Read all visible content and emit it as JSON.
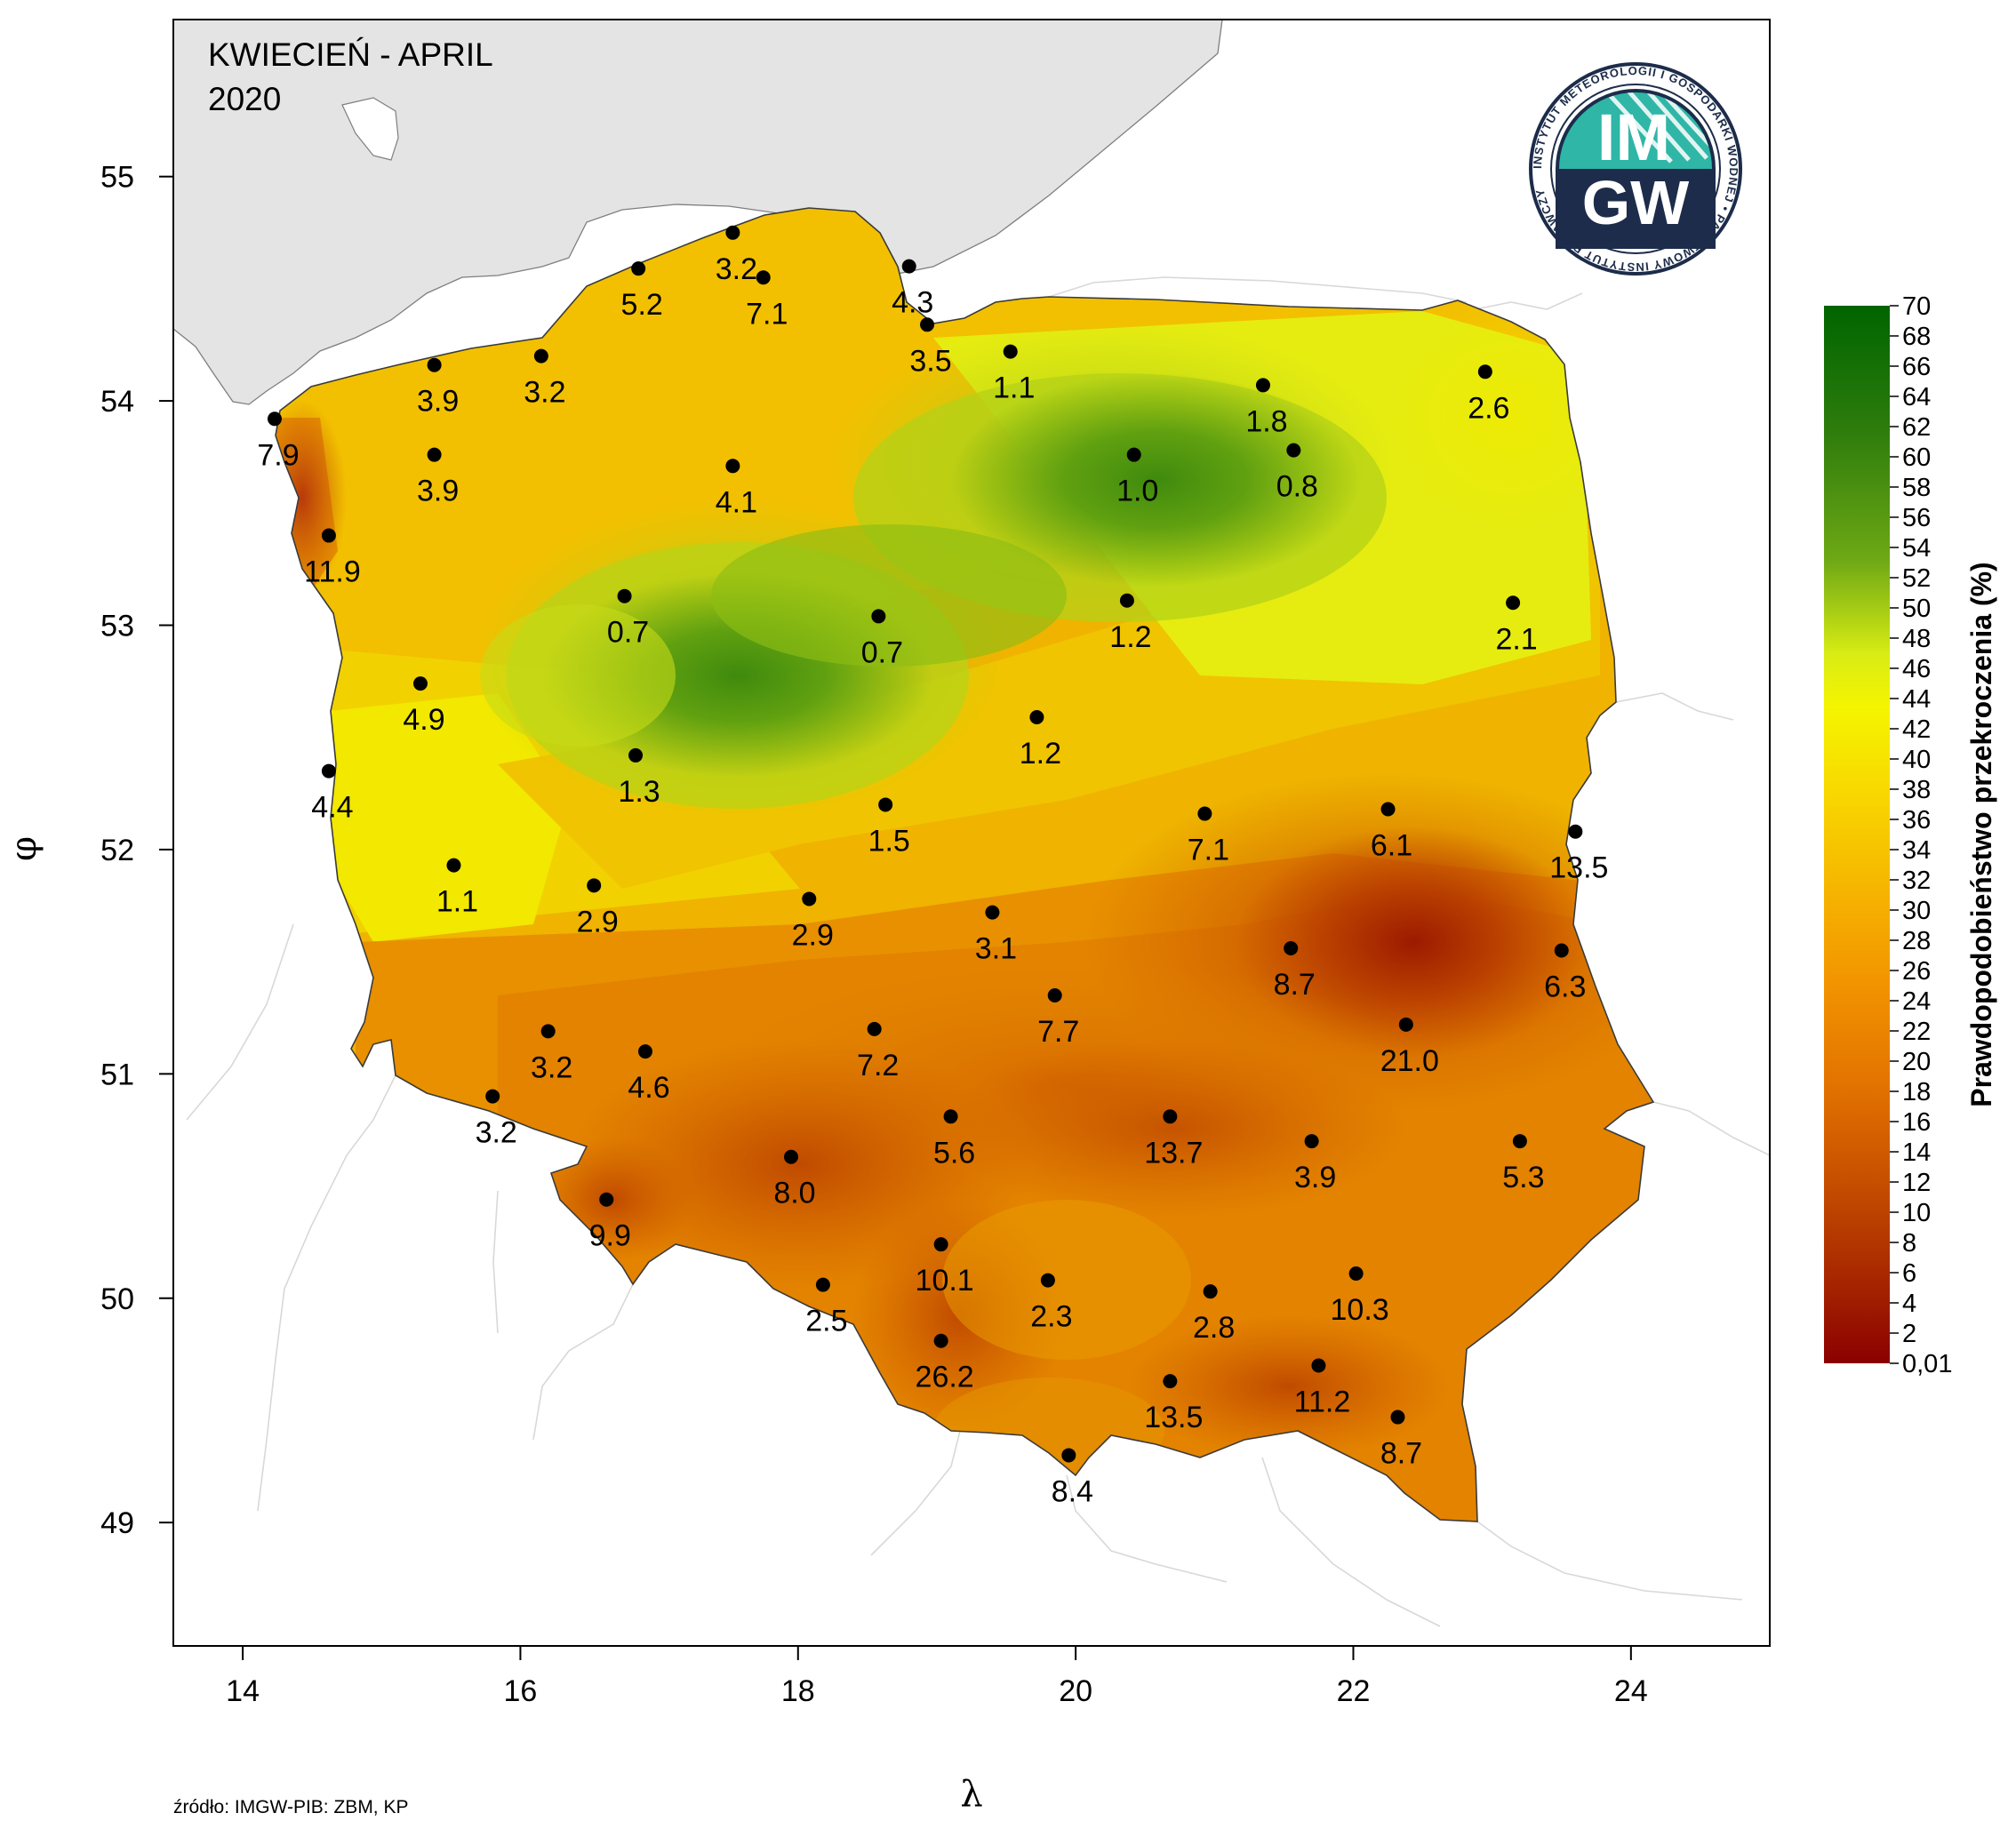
{
  "title": {
    "line1": "KWIECIEŃ - APRIL",
    "line2": "2020"
  },
  "axes": {
    "x_label": "λ",
    "y_label": "φ",
    "x_ticks": [
      "14",
      "16",
      "18",
      "20",
      "22",
      "24"
    ],
    "y_ticks": [
      "55",
      "54",
      "53",
      "52",
      "51",
      "50",
      "49"
    ],
    "x_tick_values": [
      14,
      16,
      18,
      20,
      22,
      24
    ],
    "y_tick_values": [
      55,
      54,
      53,
      52,
      51,
      50,
      49
    ],
    "lon_range": [
      13.5,
      25.0
    ],
    "lat_range": [
      48.45,
      55.7
    ]
  },
  "source_note": "źródło: IMGW-PIB: ZBM, KP",
  "logo": {
    "letters_top": "IM",
    "letters_bottom": "GW",
    "ring_text": "INSTYTUT METEOROLOGII I GOSPODARKI WODNEJ • PAŃSTWOWY INSTYTUT BADAWCZY"
  },
  "legend": {
    "title": "Prawdopodobieństwo przekroczenia (%)",
    "labels": [
      "70",
      "68",
      "66",
      "64",
      "62",
      "60",
      "58",
      "56",
      "54",
      "52",
      "50",
      "48",
      "46",
      "44",
      "42",
      "40",
      "38",
      "36",
      "34",
      "32",
      "30",
      "28",
      "26",
      "24",
      "22",
      "20",
      "18",
      "16",
      "14",
      "12",
      "10",
      "8",
      "6",
      "4",
      "2",
      "0,01"
    ]
  },
  "colors": {
    "sea": "#e4e4e4",
    "ramp_top": "#006400",
    "ramp_mid": "#f5f500",
    "ramp_low": "#f4a300",
    "ramp_bottom": "#8b0000"
  },
  "stations": [
    {
      "lon": 14.23,
      "lat": 53.92,
      "value": "7.9"
    },
    {
      "lon": 15.38,
      "lat": 54.16,
      "value": "3.9"
    },
    {
      "lon": 16.15,
      "lat": 54.2,
      "value": "3.2"
    },
    {
      "lon": 16.85,
      "lat": 54.59,
      "value": "5.2"
    },
    {
      "lon": 17.53,
      "lat": 54.75,
      "value": "3.2"
    },
    {
      "lon": 17.75,
      "lat": 54.55,
      "value": "7.1"
    },
    {
      "lon": 18.8,
      "lat": 54.6,
      "value": "4.3"
    },
    {
      "lon": 18.93,
      "lat": 54.34,
      "value": "3.5"
    },
    {
      "lon": 19.53,
      "lat": 54.22,
      "value": "1.1"
    },
    {
      "lon": 21.35,
      "lat": 54.07,
      "value": "1.8"
    },
    {
      "lon": 22.95,
      "lat": 54.13,
      "value": "2.6"
    },
    {
      "lon": 15.38,
      "lat": 53.76,
      "value": "3.9"
    },
    {
      "lon": 17.53,
      "lat": 53.71,
      "value": "4.1"
    },
    {
      "lon": 20.42,
      "lat": 53.76,
      "value": "1.0"
    },
    {
      "lon": 21.57,
      "lat": 53.78,
      "value": "0.8"
    },
    {
      "lon": 14.62,
      "lat": 53.4,
      "value": "11.9"
    },
    {
      "lon": 16.75,
      "lat": 53.13,
      "value": "0.7"
    },
    {
      "lon": 18.58,
      "lat": 53.04,
      "value": "0.7"
    },
    {
      "lon": 20.37,
      "lat": 53.11,
      "value": "1.2"
    },
    {
      "lon": 23.15,
      "lat": 53.1,
      "value": "2.1"
    },
    {
      "lon": 15.28,
      "lat": 52.74,
      "value": "4.9"
    },
    {
      "lon": 19.72,
      "lat": 52.59,
      "value": "1.2"
    },
    {
      "lon": 14.62,
      "lat": 52.35,
      "value": "4.4"
    },
    {
      "lon": 16.83,
      "lat": 52.42,
      "value": "1.3"
    },
    {
      "lon": 18.63,
      "lat": 52.2,
      "value": "1.5"
    },
    {
      "lon": 20.93,
      "lat": 52.16,
      "value": "7.1"
    },
    {
      "lon": 22.25,
      "lat": 52.18,
      "value": "6.1"
    },
    {
      "lon": 23.6,
      "lat": 52.08,
      "value": "13.5"
    },
    {
      "lon": 15.52,
      "lat": 51.93,
      "value": "1.1"
    },
    {
      "lon": 16.53,
      "lat": 51.84,
      "value": "2.9"
    },
    {
      "lon": 18.08,
      "lat": 51.78,
      "value": "2.9"
    },
    {
      "lon": 19.4,
      "lat": 51.72,
      "value": "3.1"
    },
    {
      "lon": 21.55,
      "lat": 51.56,
      "value": "8.7"
    },
    {
      "lon": 23.5,
      "lat": 51.55,
      "value": "6.3"
    },
    {
      "lon": 19.85,
      "lat": 51.35,
      "value": "7.7"
    },
    {
      "lon": 22.38,
      "lat": 51.22,
      "value": "21.0"
    },
    {
      "lon": 16.2,
      "lat": 51.19,
      "value": "3.2"
    },
    {
      "lon": 16.9,
      "lat": 51.1,
      "value": "4.6"
    },
    {
      "lon": 18.55,
      "lat": 51.2,
      "value": "7.2"
    },
    {
      "lon": 15.8,
      "lat": 50.9,
      "value": "3.2"
    },
    {
      "lon": 19.1,
      "lat": 50.81,
      "value": "5.6"
    },
    {
      "lon": 20.68,
      "lat": 50.81,
      "value": "13.7"
    },
    {
      "lon": 21.7,
      "lat": 50.7,
      "value": "3.9"
    },
    {
      "lon": 23.2,
      "lat": 50.7,
      "value": "5.3"
    },
    {
      "lon": 17.95,
      "lat": 50.63,
      "value": "8.0"
    },
    {
      "lon": 16.62,
      "lat": 50.44,
      "value": "9.9"
    },
    {
      "lon": 19.03,
      "lat": 50.24,
      "value": "10.1"
    },
    {
      "lon": 18.18,
      "lat": 50.06,
      "value": "2.5"
    },
    {
      "lon": 19.8,
      "lat": 50.08,
      "value": "2.3"
    },
    {
      "lon": 20.97,
      "lat": 50.03,
      "value": "2.8"
    },
    {
      "lon": 22.02,
      "lat": 50.11,
      "value": "10.3"
    },
    {
      "lon": 19.03,
      "lat": 49.81,
      "value": "26.2"
    },
    {
      "lon": 20.68,
      "lat": 49.63,
      "value": "13.5"
    },
    {
      "lon": 21.75,
      "lat": 49.7,
      "value": "11.2"
    },
    {
      "lon": 22.32,
      "lat": 49.47,
      "value": "8.7"
    },
    {
      "lon": 19.95,
      "lat": 49.3,
      "value": "8.4"
    }
  ]
}
